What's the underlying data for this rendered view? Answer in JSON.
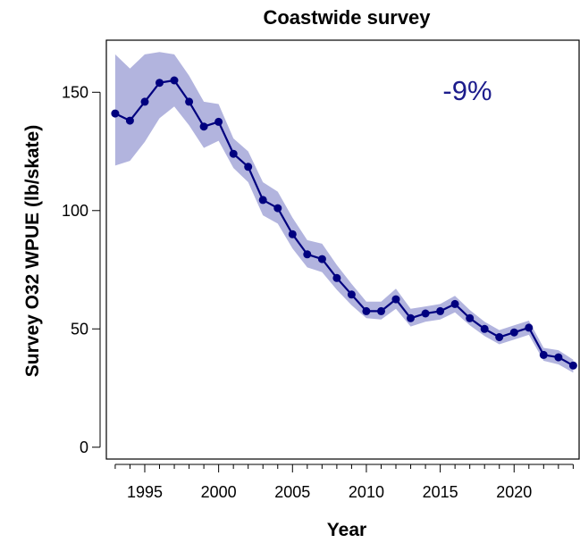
{
  "chart_data": {
    "type": "line",
    "title": "Coastwide survey",
    "xlabel": "Year",
    "ylabel": "Survey O32 WPUE (lb/skate)",
    "annotation": "-9%",
    "xlim": [
      1992.4,
      2024.4
    ],
    "ylim": [
      -5,
      172
    ],
    "x_ticks": [
      1995,
      2000,
      2005,
      2010,
      2015,
      2020
    ],
    "y_ticks": [
      0,
      50,
      100,
      150
    ],
    "grid": false,
    "legend": "none",
    "colors": {
      "line": "#00007f",
      "band": "#b2b4de",
      "annotation": "#1c1c8c"
    },
    "series": [
      {
        "x": [
          1993,
          1994,
          1995,
          1996,
          1997,
          1998,
          1999,
          2000,
          2001,
          2002,
          2003,
          2004,
          2005,
          2006,
          2007,
          2008,
          2009,
          2010,
          2011,
          2012,
          2013,
          2014,
          2015,
          2016,
          2017,
          2018,
          2019,
          2020,
          2021,
          2022,
          2023,
          2024
        ],
        "values": [
          141,
          138,
          146,
          154,
          155,
          146,
          135.5,
          137.5,
          124,
          118.5,
          104.5,
          101,
          90,
          81.5,
          79.5,
          71.5,
          64.5,
          57.5,
          57.5,
          62.5,
          54.5,
          56.5,
          57.5,
          60.5,
          54.5,
          50,
          46.5,
          48.5,
          50.5,
          39,
          38,
          34.5
        ],
        "upper": [
          166,
          160,
          166,
          167,
          166,
          157,
          146,
          145,
          130.5,
          125,
          112,
          108,
          97,
          87.5,
          86,
          77,
          69,
          61.5,
          61.5,
          67,
          58.5,
          59.5,
          60.5,
          64,
          58,
          53,
          49.5,
          51.5,
          53.5,
          42,
          41,
          37
        ],
        "lower": [
          119,
          121,
          129,
          139,
          144,
          136,
          126.5,
          129.5,
          118,
          112,
          98,
          94.5,
          84,
          76,
          74,
          66.5,
          60,
          54.5,
          54,
          58.5,
          51,
          53,
          54,
          57,
          51.5,
          47,
          43.5,
          45.5,
          47.5,
          36.5,
          35,
          31.5
        ]
      }
    ]
  }
}
